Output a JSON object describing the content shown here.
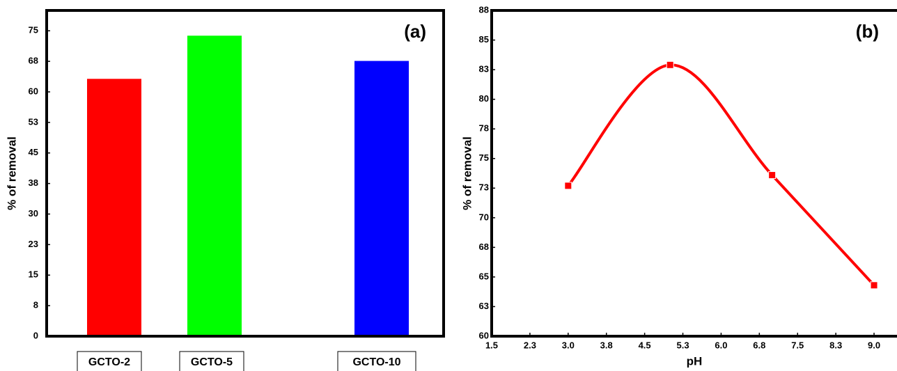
{
  "chart_data": [
    {
      "type": "bar",
      "y_label": "% of removal",
      "annotation": "(a)",
      "categories": [
        "GCTO-2",
        "GCTO-5",
        "GCTO-10"
      ],
      "values": [
        63.2,
        73.8,
        67.6
      ],
      "colors": [
        "#ff0000",
        "#00ff00",
        "#0000ff"
      ],
      "ylim": [
        0,
        80
      ],
      "yticks": [
        0,
        {
          "value": 7.5,
          "label": "8"
        },
        15,
        {
          "value": 22.5,
          "label": "23"
        },
        30,
        {
          "value": 37.5,
          "label": "38"
        },
        45,
        {
          "value": 52.5,
          "label": "53"
        },
        60,
        {
          "value": 67.5,
          "label": "68"
        },
        75
      ]
    },
    {
      "type": "line",
      "x_label": "pH",
      "y_label": "% of removal",
      "annotation": "(b)",
      "x": [
        3,
        5,
        7,
        9
      ],
      "series": [
        {
          "color": "#ff0000",
          "values": [
            72.7,
            82.9,
            73.6,
            64.3
          ]
        }
      ],
      "xlim": [
        1.5,
        9.45
      ],
      "ylim": [
        60,
        87.5
      ],
      "xticks": [
        1.5,
        {
          "value": 2.25,
          "label": "2.3"
        },
        {
          "value": 3,
          "label": "3.0"
        },
        {
          "value": 3.75,
          "label": "3.8"
        },
        4.5,
        {
          "value": 5.25,
          "label": "5.3"
        },
        {
          "value": 6,
          "label": "6.0"
        },
        {
          "value": 6.75,
          "label": "6.8"
        },
        7.5,
        {
          "value": 8.25,
          "label": "8.3"
        },
        {
          "value": 9,
          "label": "9.0"
        }
      ],
      "yticks": [
        60,
        {
          "value": 62.5,
          "label": "63"
        },
        65,
        {
          "value": 67.5,
          "label": "68"
        },
        70,
        {
          "value": 72.5,
          "label": "73"
        },
        75,
        {
          "value": 77.5,
          "label": "78"
        },
        80,
        {
          "value": 82.5,
          "label": "83"
        },
        85,
        {
          "value": 87.5,
          "label": "88"
        }
      ]
    }
  ]
}
